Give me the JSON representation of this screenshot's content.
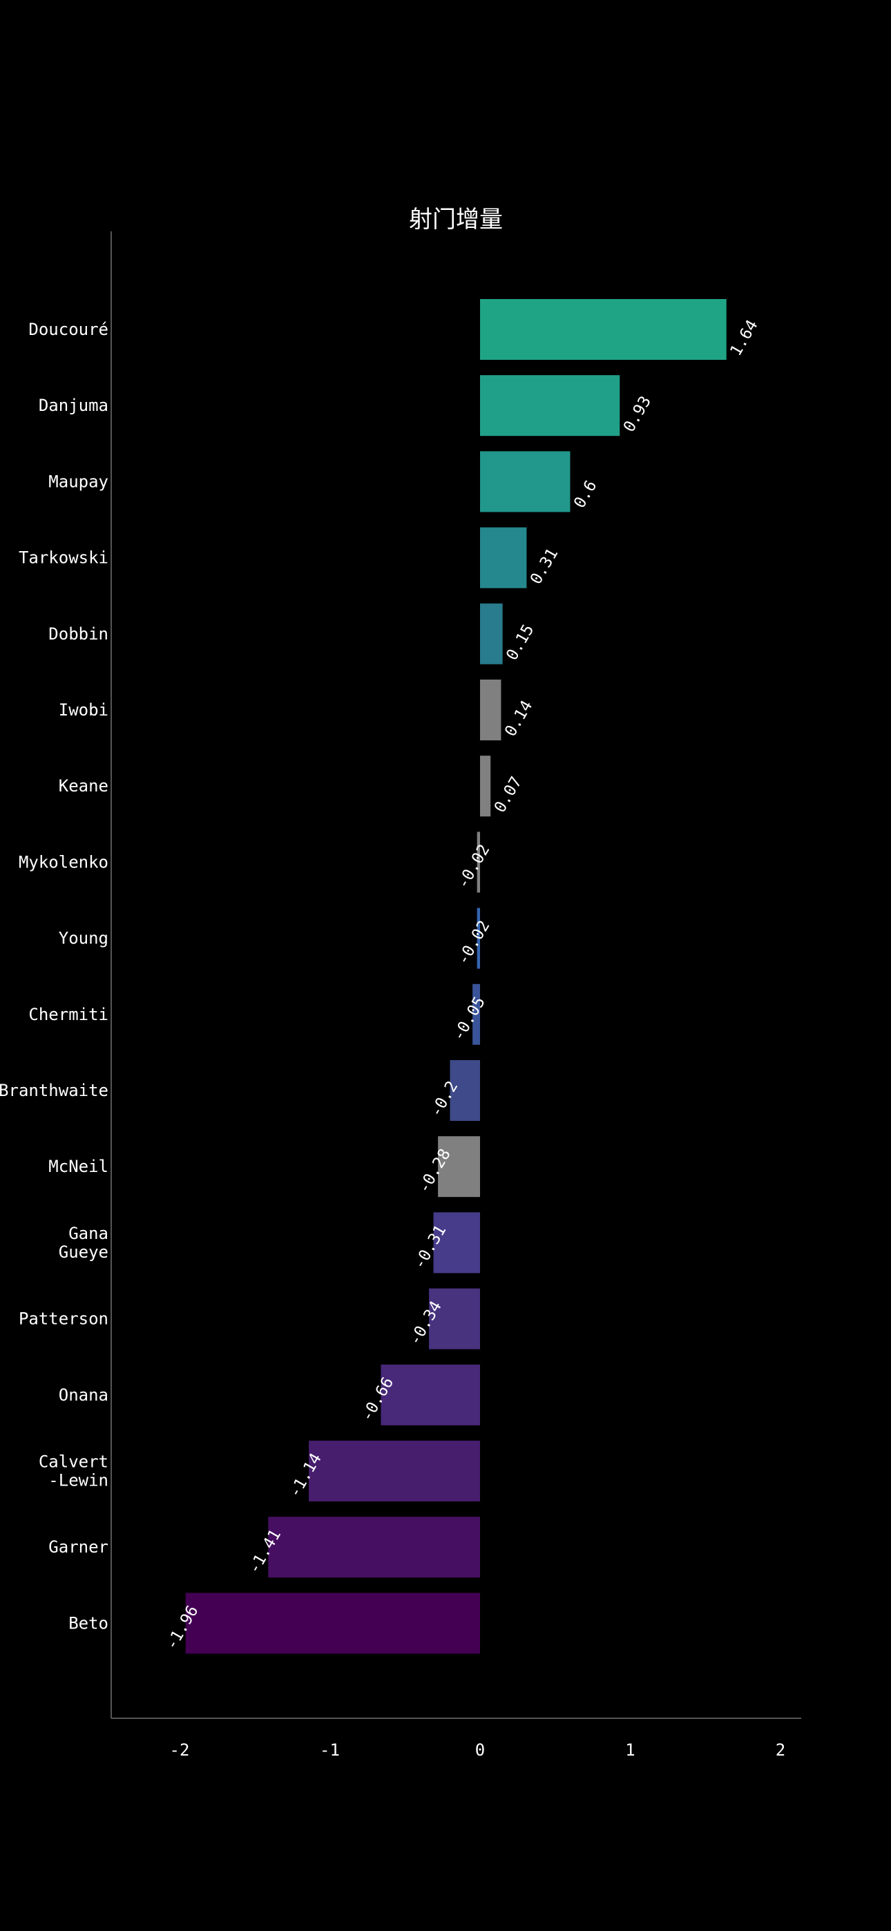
{
  "chart_data": {
    "type": "bar",
    "orientation": "horizontal",
    "title": "射门增量",
    "xlabel": "",
    "ylabel": "",
    "xlim": [
      -2.5,
      2.1
    ],
    "xticks": [
      -2,
      -1,
      0,
      1,
      2
    ],
    "xtick_labels": [
      "-2",
      "-1",
      "0",
      "1",
      "2"
    ],
    "grid": false,
    "categories": [
      [
        "Doucouré"
      ],
      [
        "Danjuma"
      ],
      [
        "Maupay"
      ],
      [
        "Tarkowski"
      ],
      [
        "Dobbin"
      ],
      [
        "Iwobi"
      ],
      [
        "Keane"
      ],
      [
        "Mykolenko"
      ],
      [
        "Young"
      ],
      [
        "Chermiti"
      ],
      [
        "Branthwaite"
      ],
      [
        "McNeil"
      ],
      [
        "Gana",
        "Gueye"
      ],
      [
        "Patterson"
      ],
      [
        "Onana"
      ],
      [
        "Calvert",
        "-Lewin"
      ],
      [
        "Garner"
      ],
      [
        "Beto"
      ]
    ],
    "values": [
      1.64,
      0.93,
      0.6,
      0.31,
      0.15,
      0.14,
      0.07,
      -0.02,
      -0.02,
      -0.05,
      -0.2,
      -0.28,
      -0.31,
      -0.34,
      -0.66,
      -1.14,
      -1.41,
      -1.96
    ],
    "value_labels": [
      "1.64",
      "0.93",
      "0.6",
      "0.31",
      "0.15",
      "0.14",
      "0.07",
      "-0.02",
      "-0.02",
      "-0.05",
      "-0.2",
      "-0.28",
      "-0.31",
      "-0.34",
      "-0.66",
      "-1.14",
      "-1.41",
      "-1.96"
    ],
    "colors": [
      "#20a486",
      "#21a089",
      "#22978b",
      "#25888e",
      "#297b8e",
      "#808080",
      "#808080",
      "#808080",
      "#3465b0",
      "#3a5499",
      "#3e4a89",
      "#808080",
      "#463c8a",
      "#48337f",
      "#482878",
      "#471d6d",
      "#470f62",
      "#440154"
    ]
  }
}
